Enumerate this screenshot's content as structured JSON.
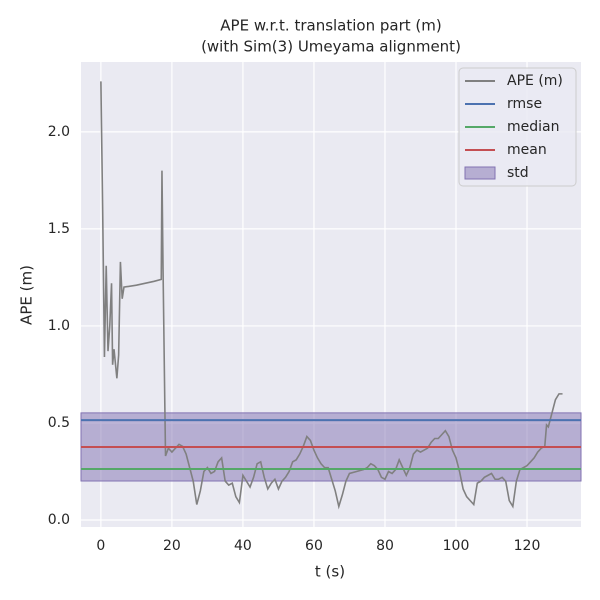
{
  "chart_data": {
    "type": "line",
    "title": [
      "APE w.r.t. translation part (m)",
      "(with Sim(3) Umeyama alignment)"
    ],
    "xlabel": "t (s)",
    "ylabel": "APE (m)",
    "xlim": [
      -5.6,
      135.2
    ],
    "ylim": [
      -0.036,
      2.36
    ],
    "xticks": [
      0,
      20,
      40,
      60,
      80,
      100,
      120
    ],
    "yticks": [
      {
        "value": 0,
        "label": "0.0"
      },
      0.5,
      {
        "value": 1,
        "label": "1.0"
      },
      1.5,
      {
        "value": 2,
        "label": "2.0"
      }
    ],
    "grid": true,
    "legend": "upper right",
    "series": [
      {
        "name": "APE (m)",
        "color": "#808080",
        "x": [
          0,
          0.5,
          1,
          1.5,
          2,
          2.5,
          3,
          3.3,
          3.7,
          4.5,
          5,
          5.5,
          6,
          6.5,
          10,
          15,
          17,
          17.2,
          17.5,
          18,
          18.2,
          19,
          20,
          22,
          23,
          24,
          26,
          27,
          28,
          29,
          30,
          31,
          32,
          33,
          34,
          35,
          36,
          37,
          38,
          39,
          40,
          41,
          42,
          43,
          44,
          45,
          46,
          47,
          48,
          49,
          50,
          51,
          52,
          53,
          54,
          55,
          56,
          57,
          58,
          59,
          60,
          61,
          62,
          63,
          64,
          65,
          66,
          67,
          68,
          69,
          70,
          72,
          74,
          75,
          76,
          77,
          78,
          79,
          80,
          81,
          82,
          83,
          84,
          85,
          86,
          87,
          88,
          89,
          90,
          92,
          93,
          94,
          95,
          96,
          97,
          98,
          99,
          100,
          101,
          102,
          103,
          104,
          105,
          106,
          107,
          108,
          109,
          110,
          111,
          112,
          113,
          114,
          115,
          116,
          117,
          118,
          119,
          120,
          121,
          122,
          123,
          124,
          125,
          125.5,
          126,
          127,
          128,
          129,
          130
        ],
        "values": [
          2.26,
          1.6,
          0.84,
          1.31,
          0.87,
          1.0,
          1.22,
          0.8,
          0.88,
          0.73,
          0.85,
          1.33,
          1.14,
          1.2,
          1.21,
          1.23,
          1.24,
          1.8,
          1.3,
          0.6,
          0.33,
          0.37,
          0.35,
          0.39,
          0.38,
          0.34,
          0.2,
          0.08,
          0.15,
          0.25,
          0.27,
          0.24,
          0.25,
          0.3,
          0.32,
          0.2,
          0.18,
          0.19,
          0.12,
          0.09,
          0.23,
          0.2,
          0.17,
          0.22,
          0.29,
          0.3,
          0.22,
          0.16,
          0.19,
          0.21,
          0.16,
          0.2,
          0.22,
          0.25,
          0.3,
          0.31,
          0.34,
          0.38,
          0.43,
          0.41,
          0.36,
          0.32,
          0.29,
          0.27,
          0.27,
          0.21,
          0.15,
          0.07,
          0.13,
          0.2,
          0.24,
          0.25,
          0.26,
          0.27,
          0.29,
          0.28,
          0.26,
          0.22,
          0.21,
          0.25,
          0.24,
          0.26,
          0.31,
          0.27,
          0.23,
          0.27,
          0.34,
          0.36,
          0.35,
          0.37,
          0.4,
          0.42,
          0.42,
          0.44,
          0.46,
          0.43,
          0.36,
          0.32,
          0.25,
          0.16,
          0.12,
          0.1,
          0.08,
          0.19,
          0.2,
          0.22,
          0.23,
          0.24,
          0.21,
          0.21,
          0.22,
          0.2,
          0.1,
          0.07,
          0.2,
          0.26,
          0.27,
          0.28,
          0.3,
          0.32,
          0.35,
          0.37,
          0.38,
          0.49,
          0.48,
          0.55,
          0.62,
          0.65,
          0.65
        ]
      },
      {
        "name": "rmse",
        "color": "#4c72b0",
        "value": 0.515
      },
      {
        "name": "median",
        "color": "#55a868",
        "value": 0.263
      },
      {
        "name": "mean",
        "color": "#c44e52",
        "value": 0.376
      },
      {
        "name": "std",
        "color": "#8172b2",
        "lower": 0.201,
        "upper": 0.552
      }
    ]
  }
}
